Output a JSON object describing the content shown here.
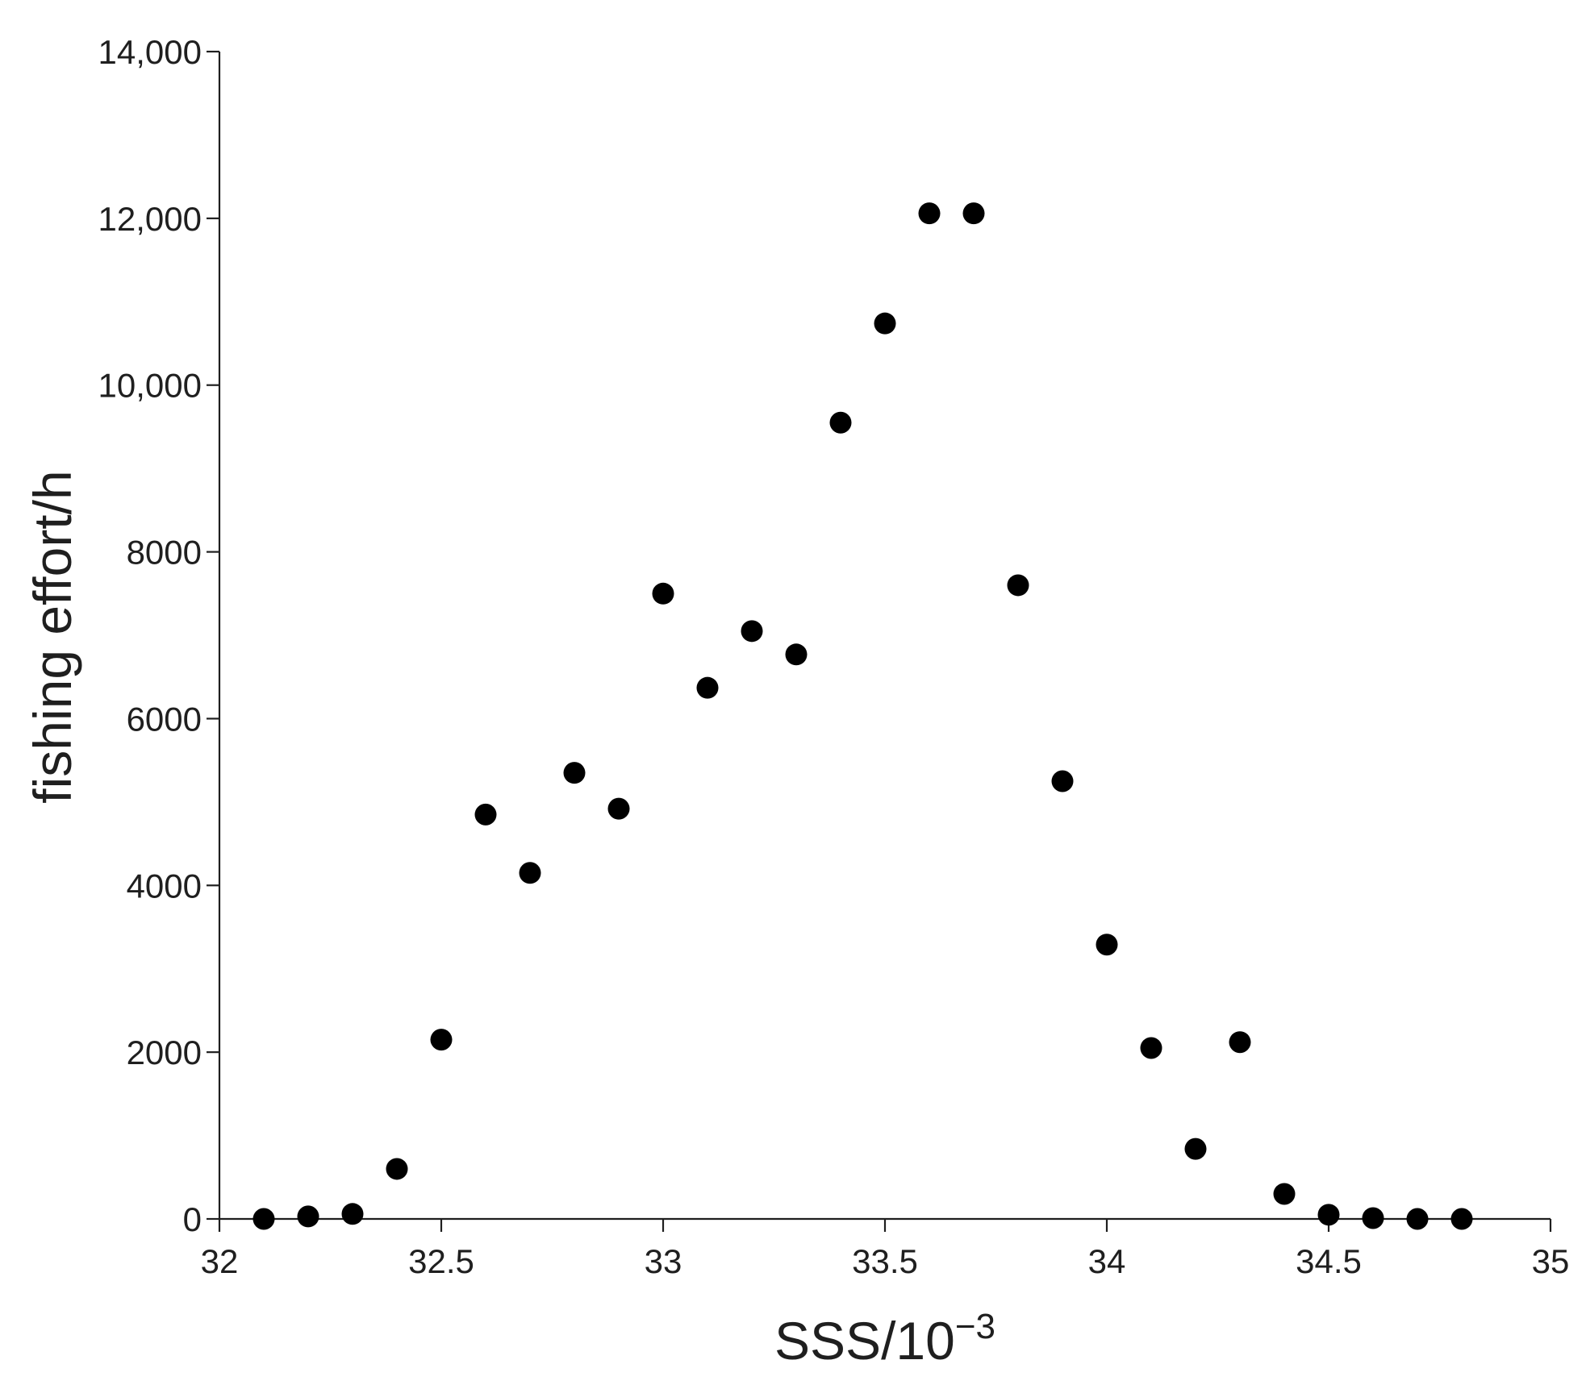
{
  "chart_data": {
    "type": "scatter",
    "xlabel": {
      "base": "SSS/10",
      "superscript": "−3"
    },
    "ylabel": "fishing effort/h",
    "xlim": [
      32,
      35
    ],
    "ylim": [
      0,
      14000
    ],
    "x_ticks": [
      32,
      32.5,
      33,
      33.5,
      34,
      34.5,
      35
    ],
    "x_tick_labels": [
      "32",
      "32.5",
      "33",
      "33.5",
      "34",
      "34.5",
      "35"
    ],
    "y_ticks": [
      0,
      2000,
      4000,
      6000,
      8000,
      10000,
      12000,
      14000
    ],
    "y_tick_labels": [
      "0",
      "2000",
      "4000",
      "6000",
      "8000",
      "10,000",
      "12,000",
      "14,000"
    ],
    "grid": false,
    "marker_color": "#000000",
    "points": [
      {
        "x": 32.1,
        "y": 0
      },
      {
        "x": 32.2,
        "y": 30
      },
      {
        "x": 32.3,
        "y": 60
      },
      {
        "x": 32.4,
        "y": 600
      },
      {
        "x": 32.5,
        "y": 2150
      },
      {
        "x": 32.6,
        "y": 4850
      },
      {
        "x": 32.7,
        "y": 4150
      },
      {
        "x": 32.8,
        "y": 5350
      },
      {
        "x": 32.9,
        "y": 4920
      },
      {
        "x": 33.0,
        "y": 7500
      },
      {
        "x": 33.1,
        "y": 6370
      },
      {
        "x": 33.2,
        "y": 7050
      },
      {
        "x": 33.3,
        "y": 6770
      },
      {
        "x": 33.4,
        "y": 9550
      },
      {
        "x": 33.5,
        "y": 10740
      },
      {
        "x": 33.6,
        "y": 12060
      },
      {
        "x": 33.7,
        "y": 12060
      },
      {
        "x": 33.8,
        "y": 7600
      },
      {
        "x": 33.9,
        "y": 5250
      },
      {
        "x": 34.0,
        "y": 3290
      },
      {
        "x": 34.1,
        "y": 2050
      },
      {
        "x": 34.2,
        "y": 840
      },
      {
        "x": 34.3,
        "y": 2120
      },
      {
        "x": 34.4,
        "y": 300
      },
      {
        "x": 34.5,
        "y": 50
      },
      {
        "x": 34.6,
        "y": 10
      },
      {
        "x": 34.7,
        "y": 0
      },
      {
        "x": 34.8,
        "y": 0
      }
    ]
  }
}
